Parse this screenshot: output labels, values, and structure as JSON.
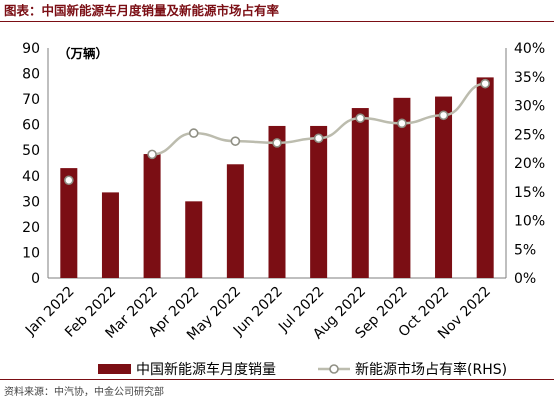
{
  "header": {
    "title": "图表：中国新能源车月度销量及新能源市场占有率"
  },
  "footer": {
    "source": "资料来源：中汽协，中金公司研究部"
  },
  "colors": {
    "bar": "#7b0e14",
    "line": "#bcbcae",
    "marker_fill": "#ffffff",
    "title": "#7b0e14"
  },
  "chart_data": {
    "type": "bar",
    "categories": [
      "Jan 2022",
      "Feb 2022",
      "Mar 2022",
      "Apr 2022",
      "May 2022",
      "Jun 2022",
      "Jul 2022",
      "Aug 2022",
      "Sep 2022",
      "Oct 2022",
      "Nov 2022"
    ],
    "series": [
      {
        "name": "中国新能源车月度销量",
        "type": "bar",
        "axis": "left",
        "values": [
          43,
          33.5,
          48.5,
          30,
          44.5,
          59.5,
          59.5,
          66.5,
          70.5,
          71,
          78.5
        ]
      },
      {
        "name": "新能源市场占有率(RHS)",
        "type": "line",
        "axis": "right",
        "values": [
          17,
          null,
          21.5,
          25.2,
          23.8,
          23.5,
          24.3,
          27.8,
          26.9,
          28.3,
          33.8
        ]
      }
    ],
    "left_axis": {
      "unit_label": "（万辆）",
      "ylim": [
        0,
        90
      ],
      "ticks": [
        "0",
        "10",
        "20",
        "30",
        "40",
        "50",
        "60",
        "70",
        "80",
        "90"
      ]
    },
    "right_axis": {
      "ylim": [
        0,
        40
      ],
      "ticks": [
        "0%",
        "5%",
        "10%",
        "15%",
        "20%",
        "25%",
        "30%",
        "35%",
        "40%"
      ]
    },
    "legend_position": "bottom",
    "grid": false
  }
}
